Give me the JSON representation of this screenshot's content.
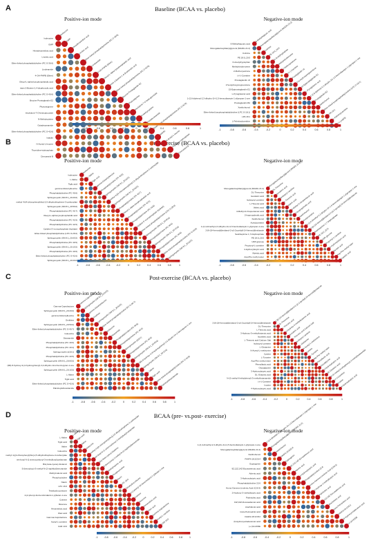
{
  "panels": [
    {
      "letter": "A",
      "title": "Baseline (BCAA vs. placebo)"
    },
    {
      "letter": "B",
      "title": "Pre-exercise (BCAA vs. placebo)"
    },
    {
      "letter": "C",
      "title": "Post-exercise (BCAA vs. placebo)"
    },
    {
      "letter": "D",
      "title": "BCAA (pre- vs.post- exercise)"
    }
  ],
  "modes": {
    "positive": "Positive-ion mode",
    "negative": "Negative-ion mode"
  },
  "colors": {
    "low": "#1f5fa8",
    "mid": "#f0a020",
    "high": "#c0141c"
  },
  "chart_data": [
    {
      "type": "heatmap",
      "panel": "A",
      "mode": "positive",
      "colorbar_ticks": [
        "-1",
        "-0.8",
        "-0.6",
        "-0.4",
        "-0.2",
        "0",
        "0.2",
        "0.4",
        "0.6",
        "0.8",
        "1"
      ],
      "labels": [
        "Isoleucine",
        "GMP",
        "Hexadecanedioic acid",
        "Linoleic acid",
        "Ether-linked phosphatidylcholine (PC O-36:6)",
        "Linoleamide",
        "4-OH-PHPB (Ether)",
        "Oleoyl-L-alpha-lysophosphatidic acid",
        "trans-2-Butene-1,4-dicarboxylic acid",
        "Ether-linked phosphatidylcholine (PC O-40:6)",
        "Brucine Prostaglandin E2",
        "Physostigmine",
        "Irisolidone-7-O-beta-glucoside",
        "N-Methylcytisine",
        "Octadecanamide",
        "Ether-linked phosphatidylcholine (PC O-42:6)",
        "Isatidin",
        "N-Acetyl-L-leucine",
        "Thymidine-triphosphate",
        "Cinncassiol B"
      ]
    },
    {
      "type": "heatmap",
      "panel": "A",
      "mode": "negative",
      "colorbar_ticks": [
        "-1",
        "-0.8",
        "-0.6",
        "-0.4",
        "-0.2",
        "0",
        "0.2",
        "0.4",
        "0.6",
        "0.8",
        "1"
      ],
      "labels": [
        "6-Methylhippuric acid",
        "Monogalactosyldiacylglycerol (MGDG 21:2)",
        "Cotinine",
        "PE 18:0_20:5",
        "N-Acetyltryptophan",
        "Methylnitrobenzene",
        "2-Methoxyestrone",
        "(+/-)-Carnitine",
        "Prostaglandin J2",
        "17a-Hydroxypregnenolone",
        "15-Epiprostaglandin E1",
        "L-Pyroglutamic acid",
        "1-(2,6-diphenyl-2,3-dihydro-1H-1,5-benzodiazepin-1-yl)propan-1-one",
        "Prostaglandin B2",
        "Xanthohumol",
        "Ether-linked lysophosphatidylcholine (LPC O-18:1)",
        "LPA 18:1",
        "L-Palmitoylcarnitine",
        "(+/-)-HEPE"
      ]
    },
    {
      "type": "heatmap",
      "panel": "B",
      "mode": "positive",
      "colorbar_ticks": [
        "-1",
        "-0.8",
        "-0.6",
        "-0.4",
        "-0.2",
        "0",
        "0.2",
        "0.4",
        "0.6",
        "0.8",
        "1"
      ],
      "labels": [
        "Isoleucine",
        "L-Valine",
        "Tiglic acid",
        "gamma-Glutamylleucine",
        "Phosphatidylcholine (PC 40:6)",
        "Sphingomyelin (SM 8:1_20:2O2)",
        "methyl 4-[(4-chlorophenyl)thio]-2,5-dihydrothiophene-3-carboxylate",
        "Sphingomyelin (SM 8:1_20:5O2)",
        "Phosphatidylcholine (PC 40:7)",
        "Oleoyl-L-alpha-lysophosphatidic acid",
        "Phosphatidylcholine (PC 42:5)",
        "Phosphatidylcholine (PC 42:6)",
        "Cytidine 5'-monophosphate (hydrate)",
        "Ether-linked phosphatidylcholine (LPC O-26:0)",
        "Sphingomyelin (SM 8:1_20:0O2)",
        "Phosphatidylcholine (PC 40:5)",
        "Sphingomyelin (SM 8:1_20:1O2)",
        "Phosphatidylcholine (PC 40:6)",
        "Ether-linked phosphatidylcholine (PC O-42:6)",
        "Sphingomyelin (SM 8:1_20:2O2)"
      ]
    },
    {
      "type": "heatmap",
      "panel": "B",
      "mode": "negative",
      "colorbar_ticks": [
        "-1",
        "-0.8",
        "-0.6",
        "-0.4",
        "-0.2",
        "0",
        "0.2",
        "0.4",
        "0.6",
        "0.8",
        "1"
      ],
      "labels": [
        "Monogalactosyldiacylglycerol (MGDG 21:2)",
        "DL-Threonine",
        "Isovaleric acid",
        "Isobutyryl carnitine",
        "L-Threonic acid",
        "Valeric acid",
        "4-Methyl-2-Oxopentanoic acid",
        "2-Isopropylmalic acid",
        "Xanthohumol",
        "Acetylcarnitine",
        "1-(2,4-dimethyl-2,3-dihydro-1H-1,5-benzodiazepin-1-yl)propan-1-one",
        "2-[6-(1H-benzo[d]imidazol-2-yl)-2-pyridyl]-1H-benzo[d]imidazole",
        "Seskhepinine 1,7-bisphosphate",
        "PE 18:0_20:5",
        "UDP-glucose",
        "Propionyl-L-carnitine",
        "4-Hydroxybutyric acid",
        "Myristic acid",
        "Asp-Phe methyl ester",
        "Caprylic acid"
      ]
    },
    {
      "type": "heatmap",
      "panel": "C",
      "mode": "positive",
      "colorbar_ticks": [
        "-1",
        "-0.8",
        "-0.6",
        "-0.4",
        "-0.2",
        "0",
        "0.2",
        "0.4",
        "0.6",
        "0.8",
        "1"
      ],
      "labels": [
        "Gamma-Caprolactone",
        "Sphingomyelin (SM 8:1_20:2O2)",
        "gamma-Glutamylleucine",
        "Ornithine",
        "Sphingomyelin (SM 8:1_20:5O2)",
        "Ether-linked phosphatidylcholine (PC O-40:7)",
        "Isoleucine",
        "Stearamide",
        "Phosphatidylcholine (PC 40:6)",
        "Phosphatidylcholine (PC 40:4)",
        "Sphingomyelin (d18:1)",
        "Phosphatidylcholine (PC 40:5)",
        "Sphingomyelin (SM 8:1_20:0O2)",
        "(3R)-8-hydroxy-3-(4-hydroxyphenyl)-3,4-dihydro-1H-2-benzopyran-1-one",
        "Sphingomyelin (SM 8:1_20:1O2)",
        "L-Valine",
        "Tiglic acid",
        "Ether-linked phosphatidylcholine (PC O-42:6)",
        "Palmitoylethanolamide"
      ]
    },
    {
      "type": "heatmap",
      "panel": "C",
      "mode": "negative",
      "colorbar_ticks": [
        "-1",
        "-0.8",
        "-0.6",
        "-0.4",
        "-0.2",
        "0",
        "0.2",
        "0.4",
        "0.6",
        "0.8",
        "1"
      ],
      "labels": [
        "2-[6-(1H-benzo[d]imidazol-2-yl)-2-pyridyl]-1H-benzo[d]imidazole",
        "DL-Threonine",
        "L-Threonic acid",
        "3-Hydroxy-3-methylbutanoic acid",
        "Isovaleric acid",
        "L-Threonic acid Calcium Salt",
        "Isobutyryl carnitine",
        "L-Glutamine",
        "N-Acetyl-L-methionine",
        "Cystine",
        "L-Tyrosine",
        "Asp-Phe methyl ester",
        "Phenyllactic acid",
        "Glycylglycine",
        "3-Hydroxybutyric acid",
        "DL-Glutamic acid",
        "N-(2-methyl-6-ethylphenyl)-3-methylbutanamide",
        "(+/-)-Carnitine",
        "Inosine",
        "4-Hydroxybutyric acid"
      ]
    },
    {
      "type": "heatmap",
      "panel": "D",
      "mode": "positive",
      "colorbar_ticks": [
        "-1",
        "-0.8",
        "-0.6",
        "-0.4",
        "-0.2",
        "0",
        "0.2",
        "0.4",
        "0.6",
        "0.8",
        "1"
      ],
      "labels": [
        "L-Valine",
        "Tiglic acid",
        "Valine",
        "Isoleucine",
        "methyl 4-[(4-chlorophenyl)thio]-2,5-dihydrothiophene-3-carboxylate",
        "tert-butyl N-(1-aminocarbonyl-3-methylbutyl)carbamate",
        "Bis(-beta-cyano)-Glutamic",
        "5-(benzyloxy)-3-methyl-N-(2-naphthyl)benzamide",
        "Methylmalonic acid",
        "Phosphocholine",
        "Niacin",
        "LPC 16:0",
        "Tetrahydrocortisone",
        "4-(2-phenyl-1H-benzimidazol-1-yl)butan-1-one",
        "Cotinine",
        "Muscone",
        "Hexanedioic acid",
        "Oleic acid",
        "Gamma-Caprolactone",
        "Acetyl-L-carnitine",
        "CAR 10:0"
      ]
    },
    {
      "type": "heatmap",
      "panel": "D",
      "mode": "negative",
      "colorbar_ticks": [
        "-1",
        "-0.8",
        "-0.6",
        "-0.4",
        "-0.2",
        "0",
        "0.2",
        "0.4",
        "0.6",
        "0.8",
        "1"
      ],
      "labels": [
        "1-(2,4-dimethyl-2,3-dihydro-1H-1,5-benzodiazepin-1-yl)propan-1-one",
        "Monogalactosyldiacylglycerol (MGDG 21:2)",
        "Xanthohumol",
        "FAHFA 18:2/20:4",
        "Gypsogenin",
        "9Z,12Z,14Z-Eicosatrienoic acid",
        "Adrenic acid",
        "3-Hydroxybutyric acid",
        "Phosphatidylcholine 22:6",
        "Homo-Gamma-Linolenic Acid (C20:3)",
        "2-Hydroxy-3-methylbutyric acid",
        "Palmitoleic acid",
        "13Z,16Z-Docosadienoic acid",
        "Arachidonic acid",
        "trans-Petroselinic acid",
        "FAHFA 18:1/18:2",
        "(9-Hydroxyoctadecanoic acid",
        "(+/-)9-HODE"
      ]
    }
  ]
}
